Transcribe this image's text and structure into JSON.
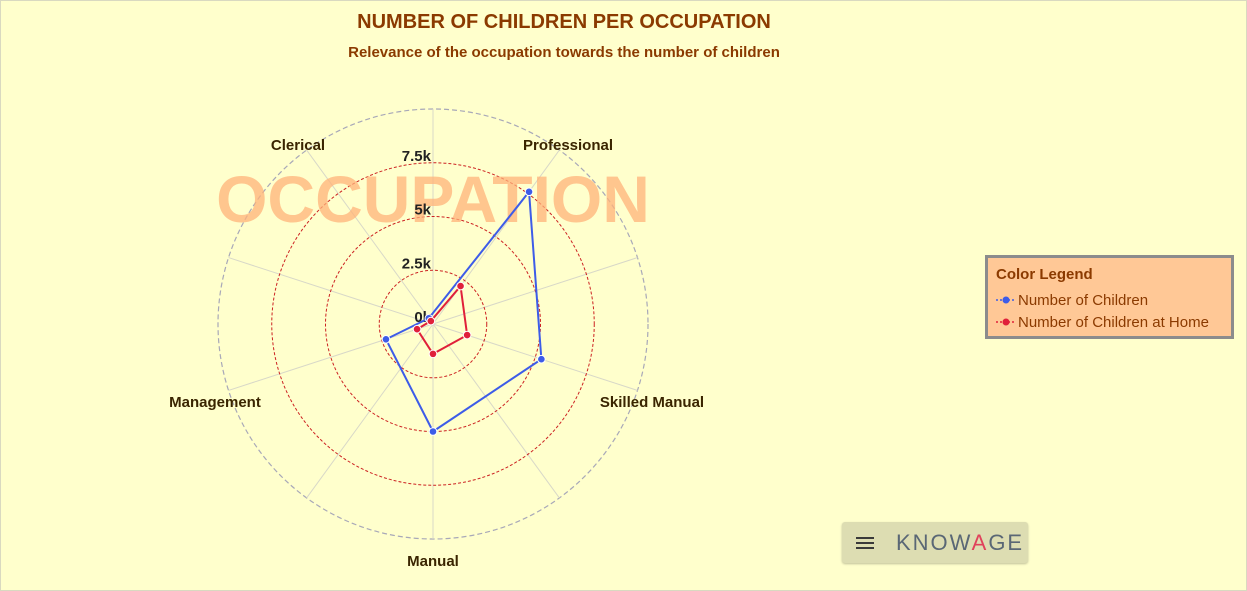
{
  "chart_data": {
    "type": "radar",
    "title": "NUMBER OF CHILDREN PER OCCUPATION",
    "subtitle": "Relevance of the occupation towards the number of children",
    "watermark": "OCCUPATION",
    "categories": [
      "Professional",
      "Skilled Manual",
      "Manual",
      "Management",
      "Clerical"
    ],
    "tick_labels": [
      "0k",
      "2.5k",
      "5k",
      "7.5k"
    ],
    "tick_values": [
      0,
      2500,
      5000,
      7500
    ],
    "ylim": [
      0,
      10000
    ],
    "series": [
      {
        "name": "Number of Children",
        "color": "#3d5ce8",
        "values": [
          7600,
          5300,
          5000,
          2300,
          330
        ]
      },
      {
        "name": "Number of Children at Home",
        "color": "#e0203a",
        "values": [
          2180,
          1670,
          1390,
          780,
          170
        ]
      }
    ],
    "legend": {
      "title": "Color Legend",
      "position": "right"
    },
    "colors": {
      "background": "#ffffcc",
      "title": "#8b3a00",
      "gridline": "#cc2222",
      "legend_bg": "#ffc896"
    }
  },
  "toolbar": {
    "menu_icon": "hamburger-menu-icon",
    "brand_prefix": "KNOW",
    "brand_accent": "A",
    "brand_suffix": "GE"
  }
}
